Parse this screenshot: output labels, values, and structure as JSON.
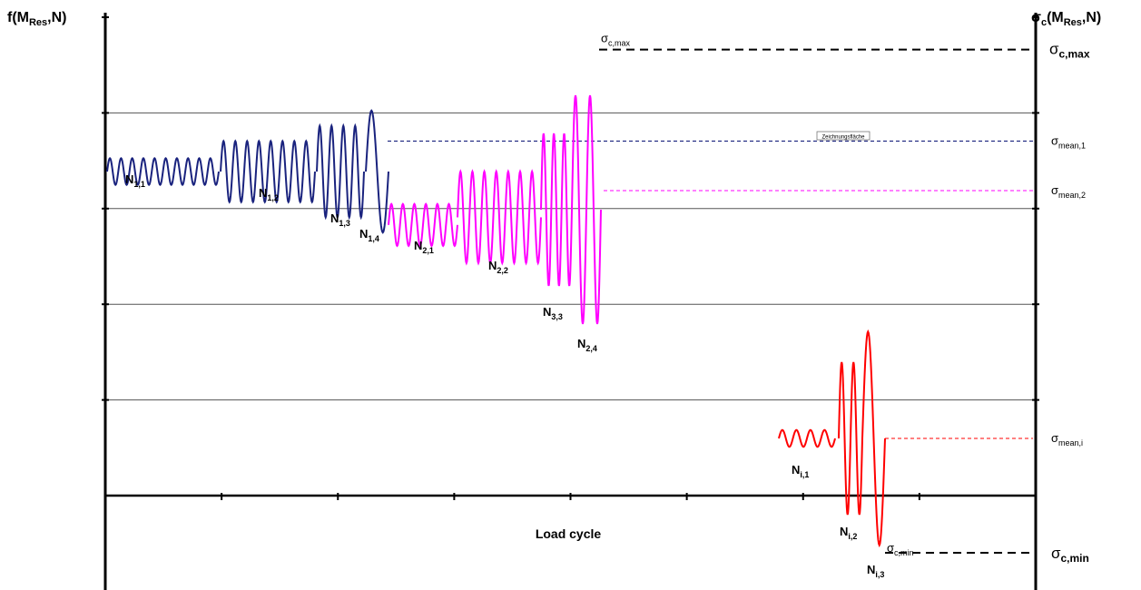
{
  "chart_data": {
    "type": "line",
    "title": "",
    "ylabel_left": {
      "main": "f(M",
      "sub": "Res",
      "tail": ",N)"
    },
    "ylabel_right": {
      "main": "σ",
      "sub1": "c",
      "mid": "(M",
      "sub2": "Res",
      "tail": ",N)"
    },
    "xlabel": "Load cycle",
    "grid": true,
    "y_gridlines": 5,
    "inset_caption": "Zeichnungsfläche",
    "series": [
      {
        "color": "#1a237e",
        "blocks": [
          {
            "label": "N",
            "sub": "1,1",
            "cycles": 10,
            "mean": 0.85,
            "amplitude": 0.035
          },
          {
            "label": "N",
            "sub": "1,2",
            "cycles": 8,
            "mean": 0.85,
            "amplitude": 0.08
          },
          {
            "label": "N",
            "sub": "1,3",
            "cycles": 4,
            "mean": 0.85,
            "amplitude": 0.12
          },
          {
            "label": "N",
            "sub": "1,4",
            "cycles": 1,
            "mean": 0.85,
            "amplitude": 0.16
          }
        ],
        "mean_line": {
          "label": "σ",
          "sub": "mean,1",
          "value": 0.93
        }
      },
      {
        "color": "#ff00ff",
        "blocks": [
          {
            "label": "N",
            "sub": "2,1",
            "cycles": 6,
            "mean": 0.71,
            "amplitude": 0.055
          },
          {
            "label": "N",
            "sub": "2,2",
            "cycles": 7,
            "mean": 0.73,
            "amplitude": 0.12
          },
          {
            "label": "N",
            "sub": "3,3",
            "cycles": 3,
            "mean": 0.75,
            "amplitude": 0.2
          },
          {
            "label": "N",
            "sub": "2,4",
            "cycles": 2,
            "mean": 0.75,
            "amplitude": 0.3
          }
        ],
        "mean_line": {
          "label": "σ",
          "sub": "mean,2",
          "value": 0.8
        }
      },
      {
        "color": "#ff0000",
        "blocks": [
          {
            "label": "N",
            "sub": "i,1",
            "cycles": 4,
            "mean": 0.15,
            "amplitude": 0.022
          },
          {
            "label": "N",
            "sub": "i,2",
            "cycles": 2,
            "mean": 0.15,
            "amplitude": 0.2
          },
          {
            "label": "N",
            "sub": "i,3",
            "cycles": 1,
            "mean": 0.15,
            "amplitude": 0.28
          }
        ],
        "mean_line": {
          "label": "σ",
          "sub": "mean,i",
          "value": 0.15
        }
      }
    ],
    "references": {
      "max": {
        "label": "σ",
        "sub": "c,max",
        "value": 1.17
      },
      "min": {
        "label": "σ",
        "sub": "c,min",
        "value": -0.15
      }
    }
  }
}
